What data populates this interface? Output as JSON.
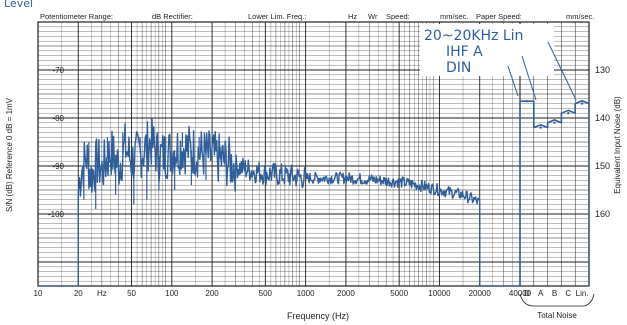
{
  "header": {
    "cutoff_word": "Level",
    "fields": [
      "Potentiometer Range:",
      "dB  Rectifier:",
      "Lower Lim. Freq.:",
      "Hz",
      "Wr",
      "Speed:",
      "mm/sec.",
      "Paper Speed:",
      "mm/sec."
    ]
  },
  "chart_data": {
    "type": "line",
    "title": "",
    "xlabel": "Frequency (Hz)",
    "ylabel_left": "S/N (dB)  Reference 0 dB = 1mV",
    "ylabel_right": "Equivalent Input Noise (dB)",
    "xscale": "log",
    "x_range": [
      10,
      40000
    ],
    "x_ticks": [
      {
        "v": 10,
        "label": "10"
      },
      {
        "v": 20,
        "label": "20"
      },
      {
        "v": 30,
        "label": "Hz"
      },
      {
        "v": 50,
        "label": "50"
      },
      {
        "v": 100,
        "label": "100"
      },
      {
        "v": 200,
        "label": "200"
      },
      {
        "v": 500,
        "label": "500"
      },
      {
        "v": 1000,
        "label": "1000"
      },
      {
        "v": 2000,
        "label": "2000"
      },
      {
        "v": 5000,
        "label": "5000"
      },
      {
        "v": 10000,
        "label": "10000"
      },
      {
        "v": 20000,
        "label": "20000"
      },
      {
        "v": 40000,
        "label": "40000"
      }
    ],
    "band_labels": [
      "D",
      "A",
      "B",
      "C",
      "Lin."
    ],
    "band_group_label": "Total Noise",
    "y_left_range": [
      -115,
      -60
    ],
    "y_left_ticks": [
      -70,
      -80,
      -90,
      -100
    ],
    "y_right_ticks": [
      130,
      140,
      150,
      160
    ],
    "y_right_offset": 60,
    "grid": true,
    "noise_spectrum": {
      "name": "",
      "points": [
        [
          20,
          -110
        ],
        [
          20,
          -95
        ],
        [
          21,
          -91
        ],
        [
          23,
          -88
        ],
        [
          25,
          -92
        ],
        [
          28,
          -89
        ],
        [
          30,
          -91
        ],
        [
          35,
          -87
        ],
        [
          40,
          -90
        ],
        [
          45,
          -86
        ],
        [
          50,
          -89
        ],
        [
          60,
          -87
        ],
        [
          70,
          -85
        ],
        [
          80,
          -88
        ],
        [
          100,
          -87
        ],
        [
          120,
          -86
        ],
        [
          150,
          -87
        ],
        [
          200,
          -88
        ],
        [
          250,
          -89
        ],
        [
          300,
          -90
        ],
        [
          400,
          -91
        ],
        [
          500,
          -91.5
        ],
        [
          700,
          -92
        ],
        [
          1000,
          -92.5
        ],
        [
          1500,
          -92.5
        ],
        [
          2000,
          -92.5
        ],
        [
          3000,
          -92.8
        ],
        [
          5000,
          -93.3
        ],
        [
          7000,
          -94
        ],
        [
          10000,
          -95
        ],
        [
          15000,
          -96
        ],
        [
          18000,
          -97
        ],
        [
          19500,
          -97.5
        ],
        [
          20000,
          -97.5
        ],
        [
          20000,
          -115
        ]
      ],
      "spikes_low": [
        [
          22,
          -97
        ],
        [
          24,
          -85
        ],
        [
          27,
          -99
        ],
        [
          33,
          -84
        ],
        [
          38,
          -96
        ],
        [
          43,
          -83
        ],
        [
          52,
          -98
        ],
        [
          58,
          -84
        ],
        [
          65,
          -97
        ],
        [
          72,
          -82
        ],
        [
          80,
          -95
        ],
        [
          90,
          -84
        ],
        [
          105,
          -95
        ],
        [
          120,
          -83
        ],
        [
          140,
          -94
        ],
        [
          160,
          -84
        ],
        [
          180,
          -93
        ],
        [
          230,
          -86
        ],
        [
          280,
          -93
        ]
      ]
    },
    "total_noise_bars": [
      {
        "label": "D",
        "value": -76.5
      },
      {
        "label": "A",
        "value": -82
      },
      {
        "label": "B",
        "value": -81
      },
      {
        "label": "C",
        "value": -79
      },
      {
        "label": "Lin.",
        "value": -77
      }
    ],
    "annotations": [
      "20~20KHz  Lin",
      "IHF  A",
      "DIN"
    ],
    "line_color": "#2f5f9a",
    "grid_color": "#1e1e1e"
  }
}
